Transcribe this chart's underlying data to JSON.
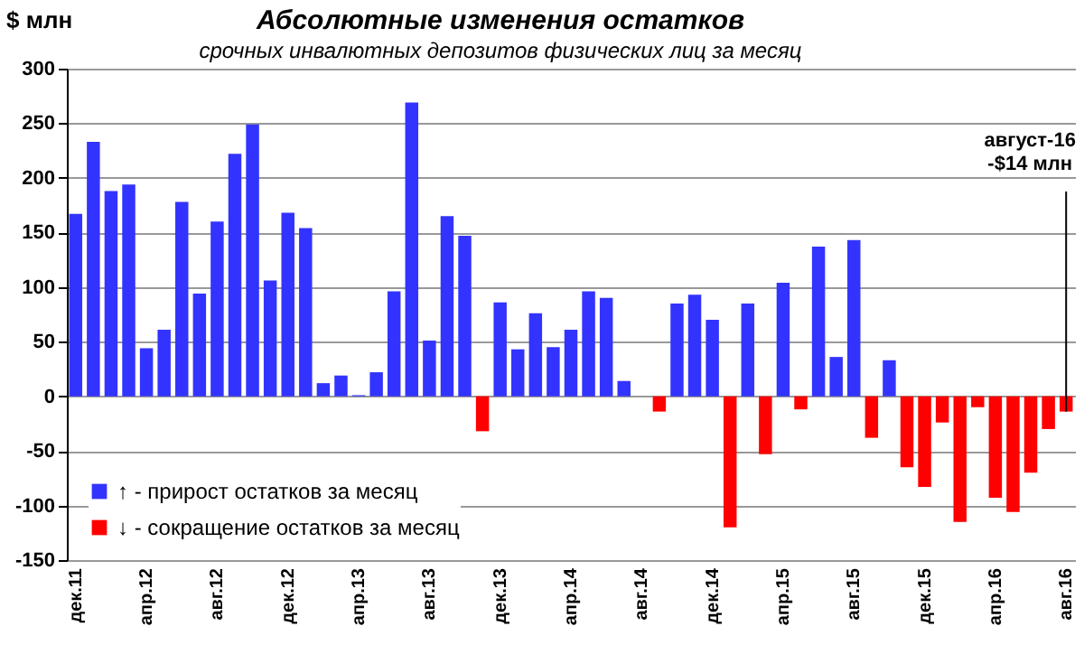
{
  "chart_data": {
    "type": "bar",
    "title": "Абсолютные изменения остатков",
    "subtitle": "срочных инвалютных депозитов физических лиц за месяц",
    "ylabel": "$ млн",
    "categories": [
      "дек.11",
      null,
      null,
      null,
      "апр.12",
      null,
      null,
      null,
      "авг.12",
      null,
      null,
      null,
      "дек.12",
      null,
      null,
      null,
      "апр.13",
      null,
      null,
      null,
      "авг.13",
      null,
      null,
      null,
      "дек.13",
      null,
      null,
      null,
      "апр.14",
      null,
      null,
      null,
      "авг.14",
      null,
      null,
      null,
      "дек.14",
      null,
      null,
      null,
      "апр.15",
      null,
      null,
      null,
      "авг.15",
      null,
      null,
      null,
      "дек.15",
      null,
      null,
      null,
      "апр.16",
      null,
      null,
      null,
      "авг.16"
    ],
    "series": [
      {
        "name": "↑ - прирост остатков за месяц",
        "color": "#3333ff",
        "values": [
          167,
          233,
          188,
          194,
          44,
          61,
          178,
          94,
          160,
          222,
          249,
          106,
          168,
          154,
          12,
          19,
          1,
          22,
          96,
          269,
          51,
          165,
          147,
          null,
          86,
          43,
          76,
          45,
          61,
          96,
          90,
          14,
          0,
          null,
          85,
          93,
          70,
          null,
          85,
          null,
          104,
          null,
          137,
          36,
          143,
          null,
          33,
          null,
          null,
          null,
          null,
          null,
          null,
          null,
          null,
          null,
          null
        ]
      },
      {
        "name": "↓ - сокращение остатков за месяц",
        "color": "#ff0000",
        "values": [
          null,
          null,
          null,
          null,
          null,
          null,
          null,
          null,
          null,
          null,
          null,
          null,
          null,
          null,
          null,
          null,
          null,
          null,
          null,
          null,
          null,
          null,
          null,
          -32,
          null,
          null,
          null,
          null,
          null,
          null,
          null,
          null,
          null,
          -14,
          null,
          null,
          null,
          -120,
          null,
          -53,
          null,
          -12,
          null,
          null,
          null,
          -38,
          null,
          -65,
          -83,
          -24,
          -115,
          -10,
          -93,
          -106,
          -70,
          -30,
          -14
        ]
      }
    ],
    "ylim": [
      -150,
      300
    ],
    "yticks": [
      -150,
      -100,
      -50,
      0,
      50,
      100,
      150,
      200,
      250,
      300
    ],
    "grid": "y",
    "legend": "bottom left",
    "annotations": [
      {
        "text": "август-16\n-$14 млн",
        "x": "авг.16",
        "y": -14
      }
    ]
  }
}
